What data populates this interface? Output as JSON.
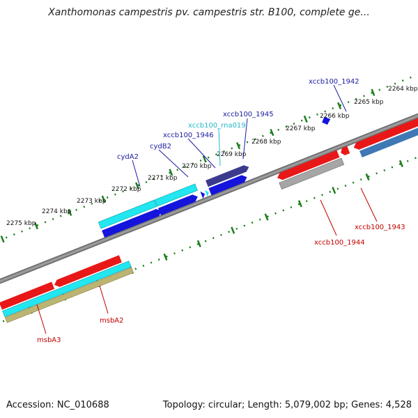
{
  "title": "Xanthomonas campestris pv. campestris str. B100, complete ge...",
  "footer": {
    "accession": "Accession: NC_010688",
    "topology": "Topology: circular; Length: 5,079,002 bp; Genes: 4,528"
  },
  "scale_labels": [
    "2275 kbp",
    "2274 kbp",
    "2273 kbp",
    "2272 kbp",
    "2271 kbp",
    "2270 kbp",
    "2269 kbp",
    "2268 kbp",
    "2267 kbp",
    "2266 kbp",
    "2265 kbp",
    "2264 kbp"
  ],
  "gene_labels": {
    "cydA2": "cydA2",
    "cydB2": "cydB2",
    "xccb100_1946": "xccb100_1946",
    "xccb100_rna019": "xccb100_rna019",
    "xccb100_1945": "xccb100_1945",
    "xccb100_1942": "xccb100_1942",
    "xccb100_1943": "xccb100_1943",
    "xccb100_1944": "xccb100_1944",
    "msbA2": "msbA2",
    "msbA3": "msbA3"
  },
  "colors": {
    "red": "#e81818",
    "cyan": "#22e6f0",
    "blue": "#1414dd",
    "navy": "#3c3a8c",
    "gray": "#a6a6a6",
    "khaki": "#bcb472",
    "steel": "#3f78b4",
    "tick": "#1d7d1d"
  }
}
